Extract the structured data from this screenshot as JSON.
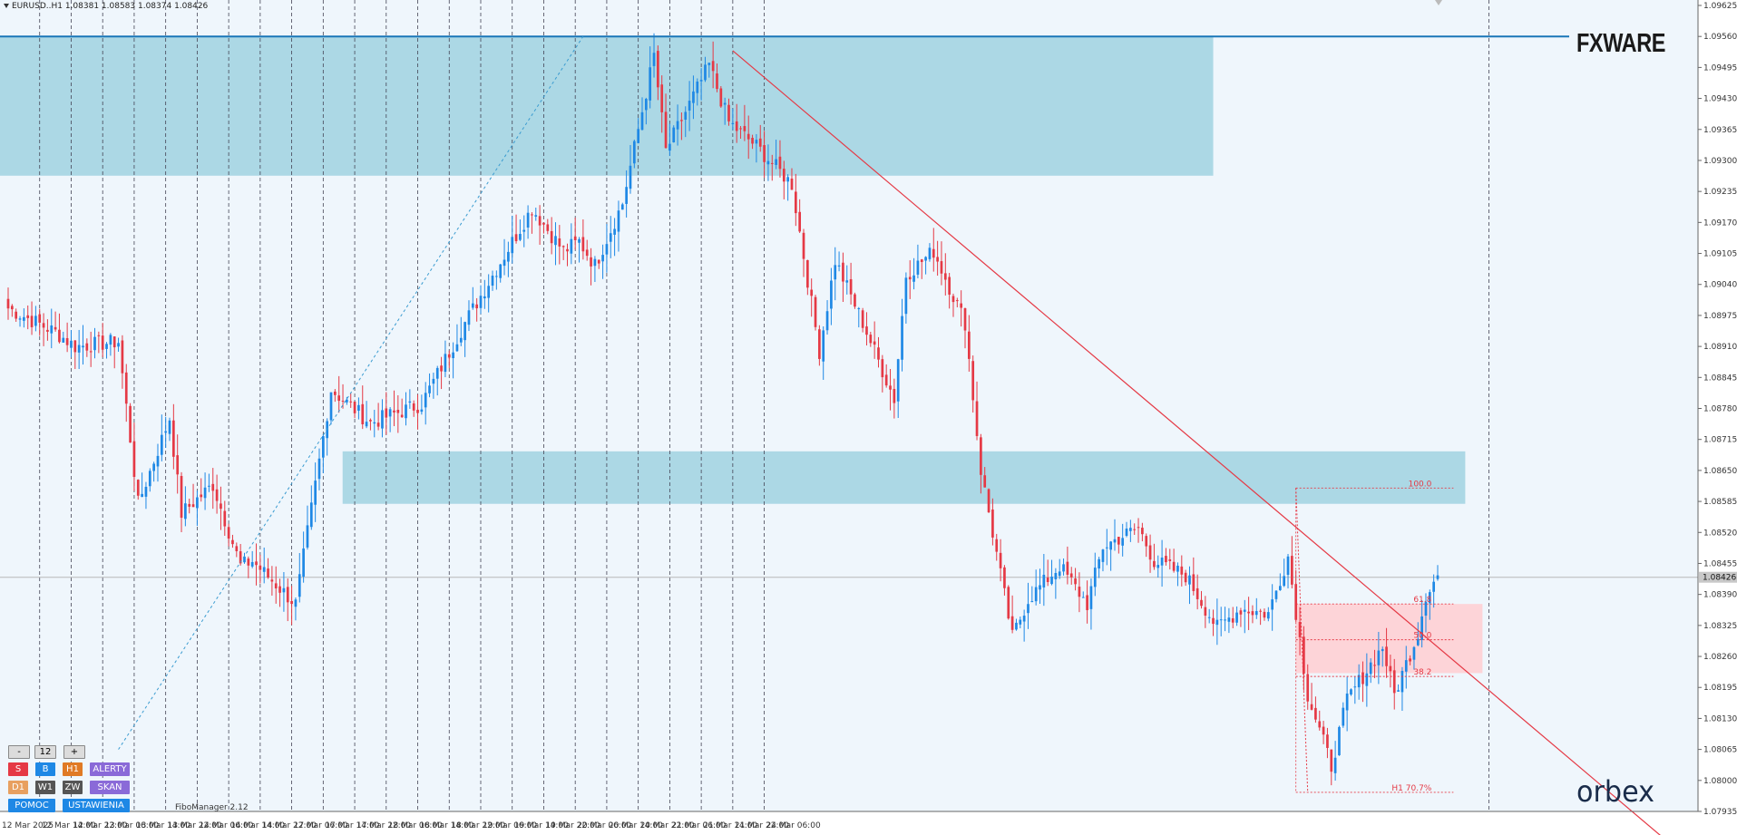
{
  "header": {
    "symbol_line": "EURUSD..H1  1.08381 1.08583 1.08374 1.08426"
  },
  "brand": {
    "top": "FXWARE",
    "bottom": "orbex"
  },
  "plugin": "FiboManager 2.12",
  "panel": {
    "minus": "-",
    "count": "12",
    "plus": "+",
    "s": "S",
    "b": "B",
    "h1": "H1",
    "alerty": "ALERTY",
    "d1": "D1",
    "w1": "W1",
    "zw": "ZW",
    "skan": "SKAN",
    "pomoc": "POMOC",
    "ustawienia": "USTAWIENIA"
  },
  "colors": {
    "bull": "#1e88e5",
    "bear": "#e53945",
    "zone": "#a8d6e4",
    "fib_zone": "#fdd4d8",
    "bg": "#eff6fc"
  },
  "chart_data": {
    "type": "candlestick",
    "timeframe": "H1",
    "ylim": [
      1.07935,
      1.09625
    ],
    "y_ticks": [
      "1.09625",
      "1.09560",
      "1.09495",
      "1.09430",
      "1.09365",
      "1.09300",
      "1.09235",
      "1.09170",
      "1.09105",
      "1.09040",
      "1.08975",
      "1.08910",
      "1.08845",
      "1.08780",
      "1.08715",
      "1.08650",
      "1.08585",
      "1.08520",
      "1.08455",
      "1.08390",
      "1.08325",
      "1.08260",
      "1.08195",
      "1.08130",
      "1.08065",
      "1.08000",
      "1.07935"
    ],
    "x_ticks": [
      "12 Mar 2025",
      "12 Mar 14:00",
      "12 Mar 22:00",
      "13 Mar 06:00",
      "13 Mar 14:00",
      "13 Mar 22:00",
      "14 Mar 06:00",
      "14 Mar 14:00",
      "14 Mar 22:00",
      "17 Mar 06:00",
      "17 Mar 14:00",
      "17 Mar 22:00",
      "18 Mar 06:00",
      "18 Mar 14:00",
      "18 Mar 22:00",
      "19 Mar 06:00",
      "19 Mar 14:00",
      "19 Mar 22:00",
      "20 Mar 06:00",
      "20 Mar 14:00",
      "20 Mar 22:00",
      "21 Mar 06:00",
      "21 Mar 14:00",
      "21 Mar 22:00",
      "24 Mar 06:00"
    ],
    "current_price": "1.08426",
    "anchors": [
      [
        0,
        1.0899
      ],
      [
        12,
        1.0894
      ],
      [
        17,
        1.0891
      ],
      [
        28,
        1.0892
      ],
      [
        33,
        1.0858
      ],
      [
        41,
        1.0876
      ],
      [
        44,
        1.0856
      ],
      [
        52,
        1.0862
      ],
      [
        59,
        1.0845
      ],
      [
        62,
        1.0846
      ],
      [
        73,
        1.0837
      ],
      [
        82,
        1.0882
      ],
      [
        92,
        1.0875
      ],
      [
        105,
        1.0879
      ],
      [
        116,
        1.0896
      ],
      [
        133,
        1.092
      ],
      [
        141,
        1.0911
      ],
      [
        145,
        1.0913
      ],
      [
        149,
        1.0908
      ],
      [
        156,
        1.0921
      ],
      [
        164,
        1.0952
      ],
      [
        167,
        1.0932
      ],
      [
        178,
        1.095
      ],
      [
        183,
        1.0938
      ],
      [
        190,
        1.0933
      ],
      [
        199,
        1.0925
      ],
      [
        206,
        1.089
      ],
      [
        210,
        1.0909
      ],
      [
        217,
        1.0896
      ],
      [
        225,
        1.088
      ],
      [
        228,
        1.0906
      ],
      [
        235,
        1.0911
      ],
      [
        243,
        1.0896
      ],
      [
        247,
        1.0865
      ],
      [
        255,
        1.083
      ],
      [
        259,
        1.0838
      ],
      [
        267,
        1.0845
      ],
      [
        274,
        1.0837
      ],
      [
        278,
        1.0849
      ],
      [
        287,
        1.0853
      ],
      [
        291,
        1.0846
      ],
      [
        299,
        1.0843
      ],
      [
        307,
        1.0832
      ],
      [
        313,
        1.0836
      ],
      [
        320,
        1.0835
      ],
      [
        325,
        1.0847
      ],
      [
        330,
        1.0818
      ],
      [
        336,
        1.0803
      ],
      [
        340,
        1.0817
      ],
      [
        349,
        1.0828
      ],
      [
        352,
        1.0818
      ],
      [
        358,
        1.0831
      ],
      [
        360,
        1.0839
      ],
      [
        363,
        1.0843
      ]
    ],
    "zones": [
      {
        "name": "supply-zone-upper",
        "top": 1.0956,
        "bottom": 1.09268,
        "start": 0,
        "end": 306
      },
      {
        "name": "supply-zone-lower",
        "top": 1.0869,
        "bottom": 1.0858,
        "start": 87,
        "end": 370
      }
    ],
    "resistance_line": 1.0956,
    "trendline": {
      "from": [
        184,
        1.0953
      ],
      "to": [
        383,
        1.0814
      ]
    },
    "dotted_line": {
      "from": [
        28,
        1.08065
      ],
      "to": [
        146,
        1.0956
      ]
    },
    "fibonacci": {
      "high": 1.08613,
      "low": 1.07975,
      "levels": [
        {
          "label": "100.0",
          "price": 1.08613
        },
        {
          "label": "61.8",
          "price": 1.0837
        },
        {
          "label": "50.0",
          "price": 1.08295
        },
        {
          "label": "38.2",
          "price": 1.08218
        },
        {
          "label": "H1 70.7%",
          "price": 1.07975
        }
      ],
      "zone": {
        "top": 1.0837,
        "bottom": 1.08225
      }
    }
  }
}
